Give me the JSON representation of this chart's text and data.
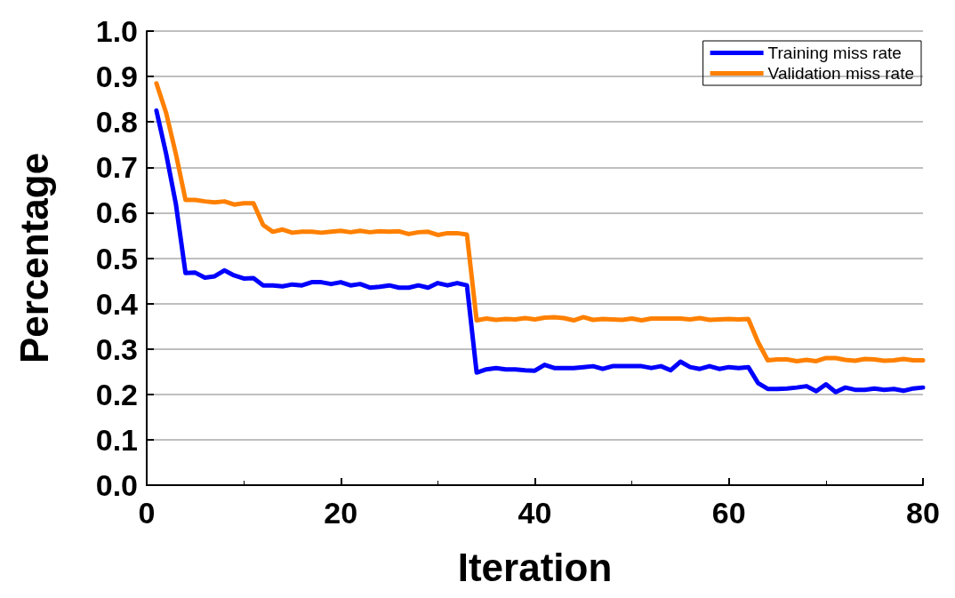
{
  "chart_data": {
    "type": "line",
    "xlabel": "Iteration",
    "ylabel": "Percentage",
    "x": [
      1,
      2,
      3,
      4,
      5,
      6,
      7,
      8,
      9,
      10,
      11,
      12,
      13,
      14,
      15,
      16,
      17,
      18,
      19,
      20,
      21,
      22,
      23,
      24,
      25,
      26,
      27,
      28,
      29,
      30,
      31,
      32,
      33,
      34,
      35,
      36,
      37,
      38,
      39,
      40,
      41,
      42,
      43,
      44,
      45,
      46,
      47,
      48,
      49,
      50,
      51,
      52,
      53,
      54,
      55,
      56,
      57,
      58,
      59,
      60,
      61,
      62,
      63,
      64,
      65,
      66,
      67,
      68,
      69,
      70,
      71,
      72,
      73,
      74,
      75,
      76,
      77,
      78,
      79,
      80
    ],
    "series": [
      {
        "name": "Training miss rate",
        "color": "#0000ff",
        "values": [
          0.825,
          0.73,
          0.62,
          0.467,
          0.468,
          0.457,
          0.46,
          0.473,
          0.462,
          0.455,
          0.456,
          0.44,
          0.44,
          0.438,
          0.442,
          0.44,
          0.447,
          0.447,
          0.443,
          0.447,
          0.44,
          0.443,
          0.435,
          0.437,
          0.44,
          0.435,
          0.435,
          0.44,
          0.435,
          0.445,
          0.44,
          0.445,
          0.44,
          0.248,
          0.255,
          0.258,
          0.255,
          0.255,
          0.253,
          0.252,
          0.265,
          0.258,
          0.258,
          0.258,
          0.26,
          0.262,
          0.256,
          0.262,
          0.262,
          0.262,
          0.262,
          0.258,
          0.262,
          0.253,
          0.272,
          0.26,
          0.256,
          0.262,
          0.256,
          0.26,
          0.258,
          0.26,
          0.225,
          0.212,
          0.212,
          0.213,
          0.215,
          0.218,
          0.207,
          0.222,
          0.205,
          0.215,
          0.21,
          0.21,
          0.213,
          0.21,
          0.212,
          0.208,
          0.213,
          0.215
        ]
      },
      {
        "name": "Validation miss rate",
        "color": "#ff8000",
        "values": [
          0.885,
          0.82,
          0.73,
          0.628,
          0.628,
          0.625,
          0.623,
          0.625,
          0.618,
          0.621,
          0.621,
          0.573,
          0.558,
          0.563,
          0.556,
          0.558,
          0.558,
          0.556,
          0.558,
          0.56,
          0.557,
          0.56,
          0.557,
          0.559,
          0.558,
          0.559,
          0.553,
          0.557,
          0.558,
          0.551,
          0.555,
          0.555,
          0.552,
          0.363,
          0.367,
          0.364,
          0.366,
          0.365,
          0.368,
          0.365,
          0.369,
          0.37,
          0.368,
          0.363,
          0.37,
          0.364,
          0.366,
          0.365,
          0.364,
          0.367,
          0.363,
          0.367,
          0.367,
          0.367,
          0.367,
          0.365,
          0.368,
          0.364,
          0.365,
          0.366,
          0.365,
          0.366,
          0.315,
          0.275,
          0.277,
          0.277,
          0.273,
          0.276,
          0.273,
          0.28,
          0.28,
          0.276,
          0.274,
          0.278,
          0.277,
          0.274,
          0.275,
          0.278,
          0.275,
          0.275
        ]
      }
    ],
    "xlim": [
      0,
      80
    ],
    "xticks": [
      0,
      20,
      40,
      60,
      80
    ],
    "ylim": [
      0,
      1
    ],
    "yticks": [
      {
        "value": 0,
        "label": "0.0"
      },
      {
        "value": 0.1,
        "label": "0.1"
      },
      {
        "value": 0.2,
        "label": "0.2"
      },
      {
        "value": 0.3,
        "label": "0.3"
      },
      {
        "value": 0.4,
        "label": "0.4"
      },
      {
        "value": 0.5,
        "label": "0.5"
      },
      {
        "value": 0.6,
        "label": "0.6"
      },
      {
        "value": 0.7,
        "label": "0.7"
      },
      {
        "value": 0.8,
        "label": "0.8"
      },
      {
        "value": 0.9,
        "label": "0.9"
      },
      {
        "value": 1,
        "label": "1.0"
      }
    ],
    "grid": "y",
    "legend": "top right",
    "marker": "none",
    "line_style": "solid"
  }
}
